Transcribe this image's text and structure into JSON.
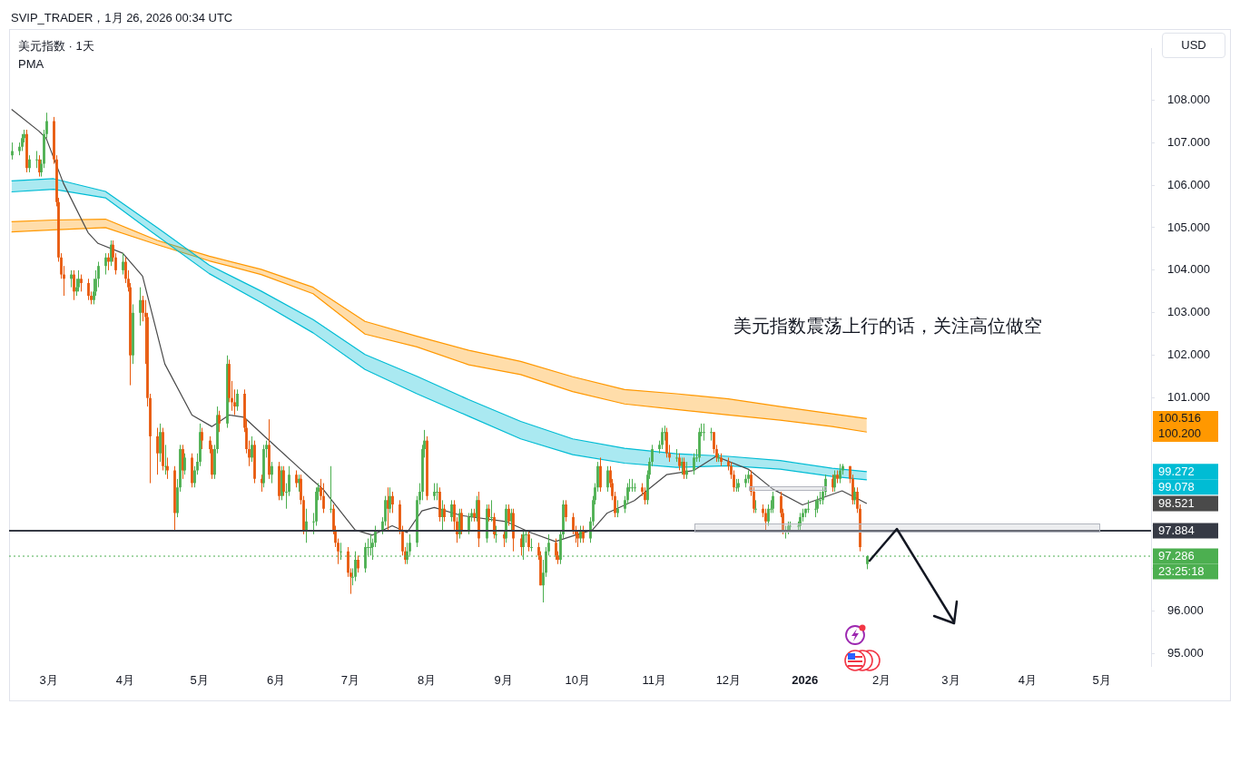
{
  "chart_data": {
    "type": "candlestick",
    "title": "美元指数 · 1天",
    "subtitle": "PMA",
    "ylabel": "USD",
    "annotations": [
      "SVIP_TRADER，1月 26, 2026 00:34 UTC",
      "美元指数震荡上行的话，关注高位做空",
      "100.516",
      "100.200",
      "99.272",
      "99.078",
      "98.521",
      "23:25:18"
    ],
    "x": [
      "2025-02-14",
      "2025-02-17",
      "2025-02-18",
      "2025-02-19",
      "2025-02-20",
      "2025-02-21",
      "2025-02-24",
      "2025-02-25",
      "2025-02-26",
      "2025-02-27",
      "2025-02-28",
      "2025-03-03",
      "2025-03-04",
      "2025-03-05",
      "2025-03-06",
      "2025-03-07",
      "2025-03-10",
      "2025-03-11",
      "2025-03-12",
      "2025-03-13",
      "2025-03-14",
      "2025-03-17",
      "2025-03-18",
      "2025-03-19",
      "2025-03-20",
      "2025-03-21",
      "2025-03-24",
      "2025-03-25",
      "2025-03-26",
      "2025-03-27",
      "2025-03-28",
      "2025-03-31",
      "2025-04-01",
      "2025-04-02",
      "2025-04-03",
      "2025-04-04",
      "2025-04-07",
      "2025-04-08",
      "2025-04-09",
      "2025-04-10",
      "2025-04-11",
      "2025-04-14",
      "2025-04-15",
      "2025-04-16",
      "2025-04-17",
      "2025-04-18",
      "2025-04-21",
      "2025-04-22",
      "2025-04-23",
      "2025-04-24",
      "2025-04-25",
      "2025-04-28",
      "2025-04-29",
      "2025-04-30",
      "2025-05-01",
      "2025-05-02",
      "2025-05-05",
      "2025-05-06",
      "2025-05-07",
      "2025-05-08",
      "2025-05-09",
      "2025-05-12",
      "2025-05-13",
      "2025-05-14",
      "2025-05-15",
      "2025-05-16",
      "2025-05-19",
      "2025-05-20",
      "2025-05-21",
      "2025-05-22",
      "2025-05-23",
      "2025-05-26",
      "2025-05-27",
      "2025-05-28",
      "2025-05-29",
      "2025-05-30",
      "2025-06-02",
      "2025-06-03",
      "2025-06-04",
      "2025-06-05",
      "2025-06-06",
      "2025-06-09",
      "2025-06-10",
      "2025-06-11",
      "2025-06-12",
      "2025-06-13",
      "2025-06-16",
      "2025-06-17",
      "2025-06-18",
      "2025-06-19",
      "2025-06-20",
      "2025-06-23",
      "2025-06-24",
      "2025-06-25",
      "2025-06-26",
      "2025-06-27",
      "2025-06-30",
      "2025-07-01",
      "2025-07-02",
      "2025-07-03",
      "2025-07-04",
      "2025-07-07",
      "2025-07-08",
      "2025-07-09",
      "2025-07-10",
      "2025-07-11",
      "2025-07-14",
      "2025-07-15",
      "2025-07-16",
      "2025-07-17",
      "2025-07-18",
      "2025-07-21",
      "2025-07-22",
      "2025-07-23",
      "2025-07-24",
      "2025-07-25",
      "2025-07-28",
      "2025-07-29",
      "2025-07-30",
      "2025-07-31",
      "2025-08-01",
      "2025-08-04",
      "2025-08-05",
      "2025-08-06",
      "2025-08-07",
      "2025-08-08",
      "2025-08-11",
      "2025-08-12",
      "2025-08-13",
      "2025-08-14",
      "2025-08-15",
      "2025-08-18",
      "2025-08-19",
      "2025-08-20",
      "2025-08-21",
      "2025-08-22",
      "2025-08-25",
      "2025-08-26",
      "2025-08-27",
      "2025-08-28",
      "2025-08-29",
      "2025-09-01",
      "2025-09-02",
      "2025-09-03",
      "2025-09-04",
      "2025-09-05",
      "2025-09-08",
      "2025-09-09",
      "2025-09-10",
      "2025-09-11",
      "2025-09-12",
      "2025-09-15",
      "2025-09-16",
      "2025-09-17",
      "2025-09-18",
      "2025-09-19",
      "2025-09-22",
      "2025-09-23",
      "2025-09-24",
      "2025-09-25",
      "2025-09-26",
      "2025-09-29",
      "2025-09-30",
      "2025-10-01",
      "2025-10-02",
      "2025-10-03",
      "2025-10-06",
      "2025-10-07",
      "2025-10-08",
      "2025-10-09",
      "2025-10-10",
      "2025-10-13",
      "2025-10-14",
      "2025-10-15",
      "2025-10-16",
      "2025-10-17",
      "2025-10-20",
      "2025-10-21",
      "2025-10-22",
      "2025-10-23",
      "2025-10-24",
      "2025-10-27",
      "2025-10-28",
      "2025-10-29",
      "2025-10-30",
      "2025-10-31",
      "2025-11-03",
      "2025-11-04",
      "2025-11-05",
      "2025-11-06",
      "2025-11-07",
      "2025-11-10",
      "2025-11-11",
      "2025-11-12",
      "2025-11-13",
      "2025-11-14",
      "2025-11-17",
      "2025-11-18",
      "2025-11-19",
      "2025-11-20",
      "2025-11-21",
      "2025-11-24",
      "2025-11-25",
      "2025-11-26",
      "2025-11-27",
      "2025-11-28",
      "2025-12-01",
      "2025-12-02",
      "2025-12-03",
      "2025-12-04",
      "2025-12-05",
      "2025-12-08",
      "2025-12-09",
      "2025-12-10",
      "2025-12-11",
      "2025-12-12",
      "2025-12-15",
      "2025-12-16",
      "2025-12-17",
      "2025-12-18",
      "2025-12-19",
      "2025-12-22",
      "2025-12-23",
      "2025-12-24",
      "2025-12-25",
      "2025-12-26",
      "2025-12-29",
      "2025-12-30",
      "2025-12-31",
      "2026-01-01",
      "2026-01-02",
      "2026-01-05",
      "2026-01-06",
      "2026-01-07",
      "2026-01-08",
      "2026-01-09",
      "2026-01-12",
      "2026-01-13",
      "2026-01-14",
      "2026-01-15",
      "2026-01-16",
      "2026-01-19",
      "2026-01-20",
      "2026-01-21",
      "2026-01-22",
      "2026-01-23",
      "2026-01-26"
    ],
    "ohlc": [
      [
        106.7,
        107.0,
        106.6,
        106.8
      ],
      [
        106.8,
        107.0,
        106.7,
        106.9
      ],
      [
        106.9,
        107.2,
        106.8,
        107.1
      ],
      [
        107.1,
        107.3,
        107.0,
        107.2
      ],
      [
        107.2,
        107.3,
        106.3,
        106.4
      ],
      [
        106.4,
        106.7,
        106.3,
        106.6
      ],
      [
        106.6,
        106.8,
        106.4,
        106.6
      ],
      [
        106.6,
        106.7,
        106.2,
        106.3
      ],
      [
        106.3,
        106.6,
        106.2,
        106.5
      ],
      [
        106.5,
        107.3,
        106.4,
        107.2
      ],
      [
        107.2,
        107.7,
        107.1,
        107.5
      ],
      [
        107.5,
        107.6,
        106.5,
        106.6
      ],
      [
        106.6,
        106.7,
        105.5,
        105.6
      ],
      [
        105.6,
        105.7,
        104.2,
        104.3
      ],
      [
        104.3,
        104.4,
        103.8,
        103.9
      ],
      [
        103.9,
        104.1,
        103.4,
        103.8
      ],
      [
        103.8,
        104.0,
        103.6,
        103.9
      ],
      [
        103.9,
        104.0,
        103.3,
        103.5
      ],
      [
        103.5,
        103.8,
        103.4,
        103.6
      ],
      [
        103.6,
        104.0,
        103.5,
        103.8
      ],
      [
        103.8,
        103.9,
        103.5,
        103.7
      ],
      [
        103.7,
        103.8,
        103.3,
        103.4
      ],
      [
        103.4,
        103.5,
        103.2,
        103.3
      ],
      [
        103.3,
        103.8,
        103.2,
        103.5
      ],
      [
        103.5,
        104.0,
        103.4,
        103.8
      ],
      [
        103.8,
        104.2,
        103.6,
        104.1
      ],
      [
        104.1,
        104.4,
        103.9,
        104.3
      ],
      [
        104.3,
        104.4,
        104.0,
        104.2
      ],
      [
        104.2,
        104.7,
        104.1,
        104.6
      ],
      [
        104.6,
        104.7,
        104.2,
        104.3
      ],
      [
        104.3,
        104.4,
        103.9,
        104.0
      ],
      [
        104.0,
        104.4,
        103.9,
        104.2
      ],
      [
        104.2,
        104.3,
        103.7,
        103.8
      ],
      [
        103.8,
        104.0,
        103.5,
        103.6
      ],
      [
        103.6,
        103.7,
        101.3,
        102.0
      ],
      [
        102.0,
        103.2,
        101.8,
        103.0
      ],
      [
        103.0,
        103.6,
        102.7,
        103.3
      ],
      [
        103.3,
        103.4,
        102.8,
        103.0
      ],
      [
        103.0,
        103.3,
        101.8,
        102.9
      ],
      [
        102.9,
        103.0,
        100.8,
        101.0
      ],
      [
        101.0,
        101.1,
        99.0,
        100.1
      ],
      [
        100.1,
        100.3,
        99.2,
        99.7
      ],
      [
        99.7,
        100.4,
        99.5,
        100.2
      ],
      [
        100.2,
        100.3,
        99.3,
        99.4
      ],
      [
        99.4,
        99.9,
        99.2,
        99.4
      ],
      [
        99.4,
        99.6,
        99.1,
        99.3
      ],
      [
        99.3,
        99.4,
        97.9,
        98.3
      ],
      [
        98.3,
        99.1,
        98.2,
        98.9
      ],
      [
        98.9,
        99.9,
        98.8,
        99.8
      ],
      [
        99.8,
        99.9,
        99.1,
        99.3
      ],
      [
        99.3,
        99.7,
        99.2,
        99.6
      ],
      [
        99.6,
        99.7,
        98.9,
        99.0
      ],
      [
        99.0,
        99.4,
        98.9,
        99.3
      ],
      [
        99.3,
        99.7,
        99.2,
        99.5
      ],
      [
        99.5,
        100.4,
        99.4,
        100.2
      ],
      [
        100.2,
        100.3,
        99.8,
        100.0
      ],
      [
        100.0,
        100.1,
        99.7,
        99.8
      ],
      [
        99.8,
        99.9,
        99.1,
        99.2
      ],
      [
        99.2,
        99.9,
        99.1,
        99.8
      ],
      [
        99.8,
        100.8,
        99.7,
        100.6
      ],
      [
        100.6,
        100.7,
        100.2,
        100.4
      ],
      [
        100.4,
        102.0,
        100.3,
        101.8
      ],
      [
        101.8,
        101.9,
        100.9,
        101.0
      ],
      [
        101.0,
        101.4,
        100.7,
        100.9
      ],
      [
        100.9,
        101.2,
        100.6,
        100.8
      ],
      [
        100.8,
        101.2,
        100.7,
        101.1
      ],
      [
        101.1,
        101.2,
        100.2,
        100.3
      ],
      [
        100.3,
        100.5,
        99.7,
        99.8
      ],
      [
        99.8,
        100.0,
        99.4,
        99.6
      ],
      [
        99.6,
        100.1,
        99.5,
        99.9
      ],
      [
        99.9,
        100.0,
        99.0,
        99.1
      ],
      [
        99.1,
        99.2,
        98.8,
        99.0
      ],
      [
        99.0,
        99.9,
        98.9,
        99.8
      ],
      [
        99.8,
        100.0,
        99.6,
        99.9
      ],
      [
        99.9,
        100.5,
        99.1,
        99.2
      ],
      [
        99.2,
        99.5,
        99.0,
        99.4
      ],
      [
        99.4,
        99.5,
        98.6,
        98.7
      ],
      [
        98.7,
        99.4,
        98.6,
        99.3
      ],
      [
        99.3,
        99.4,
        98.7,
        98.8
      ],
      [
        98.8,
        99.0,
        98.4,
        98.8
      ],
      [
        98.8,
        99.4,
        98.7,
        99.2
      ],
      [
        99.2,
        99.3,
        98.9,
        99.0
      ],
      [
        99.0,
        99.2,
        98.8,
        99.1
      ],
      [
        99.1,
        99.2,
        98.5,
        98.6
      ],
      [
        98.6,
        98.7,
        97.8,
        97.9
      ],
      [
        97.9,
        98.4,
        97.6,
        98.1
      ],
      [
        98.1,
        98.3,
        97.8,
        98.1
      ],
      [
        98.1,
        98.9,
        98.0,
        98.8
      ],
      [
        98.8,
        99.0,
        98.6,
        98.9
      ],
      [
        98.9,
        99.1,
        98.6,
        98.7
      ],
      [
        98.7,
        99.0,
        98.3,
        98.4
      ],
      [
        98.4,
        99.4,
        98.3,
        98.4
      ],
      [
        98.4,
        98.5,
        97.8,
        97.9
      ],
      [
        97.9,
        98.0,
        97.5,
        97.6
      ],
      [
        97.6,
        97.7,
        97.1,
        97.4
      ],
      [
        97.4,
        97.6,
        97.2,
        97.4
      ],
      [
        97.4,
        97.5,
        96.8,
        96.9
      ],
      [
        96.9,
        97.0,
        96.4,
        96.8
      ],
      [
        96.8,
        97.0,
        96.6,
        96.8
      ],
      [
        96.8,
        97.4,
        96.7,
        97.2
      ],
      [
        97.2,
        97.3,
        96.9,
        97.0
      ],
      [
        97.0,
        97.6,
        96.9,
        97.5
      ],
      [
        97.5,
        97.7,
        97.3,
        97.5
      ],
      [
        97.5,
        97.8,
        97.3,
        97.5
      ],
      [
        97.5,
        97.7,
        97.2,
        97.6
      ],
      [
        97.6,
        98.0,
        97.5,
        97.9
      ],
      [
        97.9,
        98.2,
        97.8,
        98.1
      ],
      [
        98.1,
        98.7,
        98.0,
        98.6
      ],
      [
        98.6,
        98.9,
        97.9,
        98.4
      ],
      [
        98.4,
        98.9,
        98.3,
        98.7
      ],
      [
        98.7,
        98.8,
        98.3,
        98.5
      ],
      [
        98.5,
        98.6,
        97.8,
        97.9
      ],
      [
        97.9,
        98.0,
        97.3,
        97.4
      ],
      [
        97.4,
        97.5,
        97.1,
        97.2
      ],
      [
        97.2,
        97.6,
        97.1,
        97.4
      ],
      [
        97.4,
        97.8,
        97.3,
        97.6
      ],
      [
        97.6,
        98.7,
        97.5,
        98.6
      ],
      [
        98.6,
        99.0,
        98.5,
        98.8
      ],
      [
        98.8,
        99.9,
        98.6,
        99.8
      ],
      [
        99.8,
        100.25,
        99.6,
        100.0
      ],
      [
        100.0,
        100.1,
        98.6,
        98.7
      ],
      [
        98.7,
        99.0,
        98.6,
        98.8
      ],
      [
        98.8,
        99.0,
        98.6,
        98.8
      ],
      [
        98.8,
        98.9,
        98.1,
        98.2
      ],
      [
        98.2,
        98.6,
        97.9,
        98.4
      ],
      [
        98.4,
        98.5,
        98.1,
        98.2
      ],
      [
        98.2,
        98.6,
        98.1,
        98.5
      ],
      [
        98.5,
        98.6,
        97.9,
        98.1
      ],
      [
        98.1,
        98.2,
        97.6,
        97.8
      ],
      [
        97.8,
        98.4,
        97.7,
        98.3
      ],
      [
        98.3,
        98.4,
        97.8,
        97.9
      ],
      [
        97.9,
        98.3,
        97.8,
        98.2
      ],
      [
        98.2,
        98.4,
        98.1,
        98.3
      ],
      [
        98.3,
        98.4,
        98.1,
        98.2
      ],
      [
        98.2,
        98.7,
        98.1,
        98.6
      ],
      [
        98.6,
        98.8,
        97.5,
        97.7
      ],
      [
        97.7,
        98.5,
        97.6,
        98.4
      ],
      [
        98.4,
        98.5,
        98.1,
        98.2
      ],
      [
        98.2,
        98.6,
        98.1,
        98.2
      ],
      [
        98.2,
        98.3,
        97.7,
        97.8
      ],
      [
        97.8,
        98.0,
        97.6,
        97.8
      ],
      [
        97.8,
        97.9,
        97.5,
        97.7
      ],
      [
        97.7,
        98.5,
        97.6,
        98.4
      ],
      [
        98.4,
        98.5,
        98.0,
        98.1
      ],
      [
        98.1,
        98.4,
        97.9,
        98.3
      ],
      [
        98.3,
        98.4,
        97.4,
        97.7
      ],
      [
        97.7,
        97.8,
        97.3,
        97.5
      ],
      [
        97.5,
        97.9,
        97.2,
        97.8
      ],
      [
        97.8,
        97.9,
        97.6,
        97.8
      ],
      [
        97.8,
        97.9,
        97.4,
        97.5
      ],
      [
        97.5,
        97.7,
        97.4,
        97.5
      ],
      [
        97.5,
        97.6,
        97.2,
        97.3
      ],
      [
        97.3,
        97.4,
        96.6,
        96.6
      ],
      [
        96.6,
        97.2,
        96.2,
        96.9
      ],
      [
        96.9,
        97.5,
        96.8,
        97.4
      ],
      [
        97.4,
        97.8,
        97.3,
        97.6
      ],
      [
        97.6,
        97.7,
        97.2,
        97.3
      ],
      [
        97.3,
        97.4,
        97.1,
        97.2
      ],
      [
        97.2,
        97.9,
        97.1,
        97.8
      ],
      [
        97.8,
        98.6,
        97.7,
        98.5
      ],
      [
        98.5,
        98.6,
        98.1,
        98.2
      ],
      [
        98.2,
        98.3,
        97.8,
        97.9
      ],
      [
        97.9,
        98.0,
        97.6,
        97.8
      ],
      [
        97.8,
        97.9,
        97.5,
        97.7
      ],
      [
        97.7,
        98.0,
        97.6,
        97.9
      ],
      [
        97.9,
        98.0,
        97.6,
        97.7
      ],
      [
        97.7,
        98.2,
        97.6,
        98.1
      ],
      [
        98.1,
        98.7,
        98.0,
        98.6
      ],
      [
        98.6,
        99.0,
        98.5,
        98.9
      ],
      [
        98.9,
        99.5,
        98.8,
        99.4
      ],
      [
        99.4,
        99.6,
        98.8,
        98.9
      ],
      [
        98.9,
        99.4,
        98.8,
        99.3
      ],
      [
        99.3,
        99.4,
        98.9,
        99.0
      ],
      [
        99.0,
        99.1,
        98.6,
        98.7
      ],
      [
        98.7,
        98.8,
        98.2,
        98.3
      ],
      [
        98.3,
        98.6,
        98.2,
        98.4
      ],
      [
        98.4,
        98.7,
        98.3,
        98.6
      ],
      [
        98.6,
        99.0,
        98.5,
        98.9
      ],
      [
        98.9,
        99.1,
        98.8,
        98.9
      ],
      [
        98.9,
        99.1,
        98.8,
        98.9
      ],
      [
        98.9,
        99.0,
        98.8,
        98.9
      ],
      [
        98.9,
        99.0,
        98.7,
        98.8
      ],
      [
        98.8,
        98.9,
        98.5,
        98.6
      ],
      [
        98.6,
        99.3,
        98.5,
        99.2
      ],
      [
        99.2,
        99.6,
        99.1,
        99.5
      ],
      [
        99.5,
        99.9,
        99.4,
        99.8
      ],
      [
        99.8,
        100.0,
        99.7,
        99.9
      ],
      [
        99.9,
        100.3,
        99.8,
        100.2
      ],
      [
        100.2,
        100.35,
        100.0,
        100.2
      ],
      [
        100.2,
        100.3,
        99.6,
        99.7
      ],
      [
        99.7,
        99.9,
        99.5,
        99.6
      ],
      [
        99.6,
        99.8,
        99.5,
        99.6
      ],
      [
        99.6,
        99.7,
        99.3,
        99.4
      ],
      [
        99.4,
        99.6,
        99.2,
        99.5
      ],
      [
        99.5,
        99.6,
        99.1,
        99.2
      ],
      [
        99.2,
        99.5,
        99.1,
        99.3
      ],
      [
        99.3,
        99.7,
        99.2,
        99.6
      ],
      [
        99.6,
        99.8,
        99.5,
        99.6
      ],
      [
        99.6,
        100.3,
        99.5,
        100.2
      ],
      [
        100.2,
        100.4,
        100.1,
        100.2
      ],
      [
        100.2,
        100.4,
        100.0,
        100.2
      ],
      [
        100.2,
        100.3,
        100.0,
        100.2
      ],
      [
        100.2,
        100.2,
        99.7,
        99.8
      ],
      [
        99.8,
        99.9,
        99.5,
        99.6
      ],
      [
        99.6,
        99.7,
        99.5,
        99.6
      ],
      [
        99.6,
        99.7,
        99.4,
        99.5
      ],
      [
        99.5,
        99.6,
        99.3,
        99.4
      ],
      [
        99.4,
        99.5,
        99.1,
        99.2
      ],
      [
        99.2,
        99.3,
        98.8,
        98.9
      ],
      [
        98.9,
        99.1,
        98.8,
        98.9
      ],
      [
        98.9,
        99.1,
        98.8,
        99.0
      ],
      [
        99.0,
        99.2,
        98.9,
        99.1
      ],
      [
        99.1,
        99.3,
        99.0,
        99.2
      ],
      [
        99.2,
        99.3,
        98.7,
        98.8
      ],
      [
        98.8,
        98.9,
        98.3,
        98.4
      ],
      [
        98.4,
        98.6,
        98.3,
        98.4
      ],
      [
        98.4,
        98.5,
        98.2,
        98.3
      ],
      [
        98.3,
        98.4,
        97.9,
        98.1
      ],
      [
        98.1,
        98.5,
        98.0,
        98.4
      ],
      [
        98.4,
        98.6,
        98.3,
        98.4
      ],
      [
        98.4,
        98.8,
        98.3,
        98.7
      ],
      [
        98.7,
        98.8,
        98.2,
        98.3
      ],
      [
        98.3,
        98.4,
        97.8,
        97.9
      ],
      [
        97.9,
        98.0,
        97.7,
        97.9
      ],
      [
        97.9,
        98.1,
        97.8,
        98.0
      ],
      [
        98.0,
        98.1,
        97.9,
        98.0
      ],
      [
        98.0,
        98.1,
        97.9,
        98.0
      ],
      [
        98.0,
        98.3,
        97.9,
        98.2
      ],
      [
        98.2,
        98.4,
        98.1,
        98.3
      ],
      [
        98.3,
        98.4,
        98.2,
        98.4
      ],
      [
        98.4,
        98.6,
        98.3,
        98.4
      ],
      [
        98.4,
        98.6,
        98.2,
        98.4
      ],
      [
        98.4,
        98.7,
        98.3,
        98.6
      ],
      [
        98.6,
        98.8,
        98.5,
        98.6
      ],
      [
        98.6,
        98.9,
        98.5,
        98.8
      ],
      [
        98.8,
        99.2,
        98.7,
        99.1
      ],
      [
        99.1,
        99.2,
        98.8,
        98.9
      ],
      [
        98.9,
        99.3,
        98.8,
        99.2
      ],
      [
        99.2,
        99.3,
        99.0,
        99.1
      ],
      [
        99.1,
        99.45,
        99.0,
        99.3
      ],
      [
        99.3,
        99.45,
        99.2,
        99.4
      ],
      [
        99.4,
        99.4,
        99.0,
        99.1
      ],
      [
        99.1,
        99.2,
        98.5,
        98.6
      ],
      [
        98.6,
        98.9,
        98.5,
        98.8
      ],
      [
        98.8,
        98.9,
        98.3,
        98.4
      ],
      [
        98.4,
        98.5,
        97.4,
        97.5
      ],
      [
        97.1,
        97.3,
        96.98,
        97.286
      ]
    ],
    "series": [
      {
        "type": "line",
        "color": "#4a4a4a",
        "x": [
          "2025-02-14",
          "2025-02-25",
          "2025-02-28",
          "2025-03-07",
          "2025-03-17",
          "2025-03-21",
          "2025-03-31",
          "2025-04-08",
          "2025-04-17",
          "2025-04-28",
          "2025-05-06",
          "2025-05-13",
          "2025-05-19",
          "2025-05-27",
          "2025-06-09",
          "2025-06-16",
          "2025-06-20",
          "2025-07-03",
          "2025-07-10",
          "2025-07-18",
          "2025-07-24",
          "2025-07-30",
          "2025-08-04",
          "2025-08-15",
          "2025-09-02",
          "2025-09-12",
          "2025-09-22",
          "2025-09-30",
          "2025-10-07",
          "2025-10-13",
          "2025-10-24",
          "2025-11-06",
          "2025-11-17",
          "2025-11-26",
          "2025-12-09",
          "2025-12-19",
          "2025-12-31",
          "2026-01-16",
          "2026-01-26"
        ],
        "values": [
          107.78,
          107.27,
          107.1,
          106.04,
          104.88,
          104.63,
          104.4,
          103.86,
          101.8,
          100.6,
          100.33,
          100.6,
          100.55,
          100.12,
          99.43,
          99.06,
          98.86,
          97.9,
          97.78,
          98.0,
          97.84,
          98.35,
          98.43,
          98.24,
          98.1,
          97.84,
          97.63,
          97.78,
          97.9,
          98.3,
          98.59,
          99.2,
          99.3,
          99.63,
          99.33,
          98.86,
          98.49,
          98.82,
          98.521
        ]
      },
      {
        "type": "line",
        "color": "#00bcd4",
        "x": [
          "2025-02-14",
          "2025-03-03",
          "2025-03-24",
          "2025-04-14",
          "2025-05-05",
          "2025-05-26",
          "2025-06-16",
          "2025-07-07",
          "2025-07-28",
          "2025-08-18",
          "2025-09-08",
          "2025-09-29",
          "2025-10-20",
          "2025-11-10",
          "2025-12-01",
          "2025-12-22",
          "2026-01-12",
          "2026-01-26"
        ],
        "values": [
          106.1,
          106.15,
          105.85,
          105.0,
          104.12,
          103.51,
          102.84,
          102.02,
          101.51,
          100.96,
          100.45,
          100.04,
          99.82,
          99.69,
          99.63,
          99.53,
          99.35,
          99.272
        ],
        "upper": [
          106.1,
          106.15,
          105.85,
          105.0,
          104.12,
          103.51,
          102.84,
          102.02,
          101.51,
          100.96,
          100.45,
          100.04,
          99.82,
          99.69,
          99.63,
          99.53,
          99.35,
          99.272
        ],
        "lower": [
          105.84,
          105.9,
          105.7,
          104.8,
          103.92,
          103.24,
          102.53,
          101.67,
          101.1,
          100.57,
          100.04,
          99.67,
          99.47,
          99.37,
          99.41,
          99.33,
          99.16,
          99.078
        ]
      },
      {
        "type": "line",
        "color": "#00bcd4",
        "x": [
          "2025-02-14",
          "2025-03-03",
          "2025-03-24",
          "2025-04-14",
          "2025-05-05",
          "2025-05-26",
          "2025-06-16",
          "2025-07-07",
          "2025-07-28",
          "2025-08-18",
          "2025-09-08",
          "2025-09-29",
          "2025-10-20",
          "2025-11-10",
          "2025-12-01",
          "2025-12-22",
          "2026-01-12",
          "2026-01-26"
        ],
        "values": [
          105.84,
          105.9,
          105.7,
          104.8,
          103.92,
          103.24,
          102.53,
          101.67,
          101.1,
          100.57,
          100.04,
          99.67,
          99.47,
          99.37,
          99.41,
          99.33,
          99.16,
          99.078
        ]
      },
      {
        "type": "line",
        "color": "#ff9800",
        "x": [
          "2025-02-14",
          "2025-03-03",
          "2025-03-24",
          "2025-04-14",
          "2025-05-05",
          "2025-05-26",
          "2025-06-16",
          "2025-07-07",
          "2025-07-28",
          "2025-08-18",
          "2025-09-08",
          "2025-09-29",
          "2025-10-20",
          "2025-11-10",
          "2025-12-01",
          "2025-12-22",
          "2026-01-12",
          "2026-01-26"
        ],
        "values": [
          105.14,
          105.18,
          105.2,
          104.7,
          104.33,
          104.02,
          103.6,
          102.8,
          102.45,
          102.12,
          101.86,
          101.5,
          101.2,
          101.1,
          100.98,
          100.8,
          100.63,
          100.516
        ],
        "upper": [
          105.14,
          105.18,
          105.2,
          104.7,
          104.33,
          104.02,
          103.6,
          102.8,
          102.45,
          102.12,
          101.86,
          101.5,
          101.2,
          101.1,
          100.98,
          100.8,
          100.63,
          100.516
        ],
        "lower": [
          104.9,
          104.95,
          105.0,
          104.6,
          104.22,
          103.9,
          103.45,
          102.5,
          102.2,
          101.78,
          101.55,
          101.15,
          100.86,
          100.73,
          100.6,
          100.48,
          100.33,
          100.2
        ]
      },
      {
        "type": "line",
        "color": "#ff9800",
        "x": [
          "2025-02-14",
          "2025-03-03",
          "2025-03-24",
          "2025-04-14",
          "2025-05-05",
          "2025-05-26",
          "2025-06-16",
          "2025-07-07",
          "2025-07-28",
          "2025-08-18",
          "2025-09-08",
          "2025-09-29",
          "2025-10-20",
          "2025-11-10",
          "2025-12-01",
          "2025-12-22",
          "2026-01-12",
          "2026-01-26"
        ],
        "values": [
          104.9,
          104.95,
          105.0,
          104.6,
          104.22,
          103.9,
          103.45,
          102.5,
          102.2,
          101.78,
          101.55,
          101.15,
          100.86,
          100.73,
          100.6,
          100.48,
          100.33,
          100.2
        ]
      }
    ],
    "ref_lines": [
      {
        "axis": "y",
        "value": 97.884,
        "label": "97.884",
        "color": "#363a45",
        "line_style": "solid"
      },
      {
        "axis": "y",
        "value": 97.286,
        "label": "97.286",
        "color": "#4caf50",
        "line_style": "dotted"
      }
    ],
    "xlim": [
      "2025-02-13",
      "2026-05-21"
    ],
    "xticks": [
      {
        "value": "2025-03-01",
        "label": "3月"
      },
      {
        "value": "2025-04-01",
        "label": "4月"
      },
      {
        "value": "2025-05-01",
        "label": "5月"
      },
      {
        "value": "2025-06-01",
        "label": "6月"
      },
      {
        "value": "2025-07-01",
        "label": "7月"
      },
      {
        "value": "2025-08-01",
        "label": "8月"
      },
      {
        "value": "2025-09-01",
        "label": "9月"
      },
      {
        "value": "2025-10-01",
        "label": "10月"
      },
      {
        "value": "2025-11-01",
        "label": "11月"
      },
      {
        "value": "2025-12-01",
        "label": "12月"
      },
      {
        "value": "2026-01-01",
        "label": "2026"
      },
      {
        "value": "2026-02-01",
        "label": "2月"
      },
      {
        "value": "2026-03-01",
        "label": "3月"
      },
      {
        "value": "2026-04-01",
        "label": "4月"
      },
      {
        "value": "2026-05-01",
        "label": "5月"
      }
    ],
    "ylim": [
      94.7,
      109.2
    ],
    "yticks": [
      {
        "value": 95,
        "label": "95.000"
      },
      {
        "value": 96,
        "label": "96.000"
      },
      {
        "value": 97,
        "label": null
      },
      {
        "value": 98,
        "label": null
      },
      {
        "value": 99,
        "label": null
      },
      {
        "value": 100,
        "label": null
      },
      {
        "value": 101,
        "label": "101.000"
      },
      {
        "value": 102,
        "label": "102.000"
      },
      {
        "value": 103,
        "label": "103.000"
      },
      {
        "value": 104,
        "label": "104.000"
      },
      {
        "value": 105,
        "label": "105.000"
      },
      {
        "value": 106,
        "label": "106.000"
      },
      {
        "value": 107,
        "label": "107.000"
      },
      {
        "value": 108,
        "label": "108.000"
      }
    ],
    "grid": false,
    "legend": false
  }
}
